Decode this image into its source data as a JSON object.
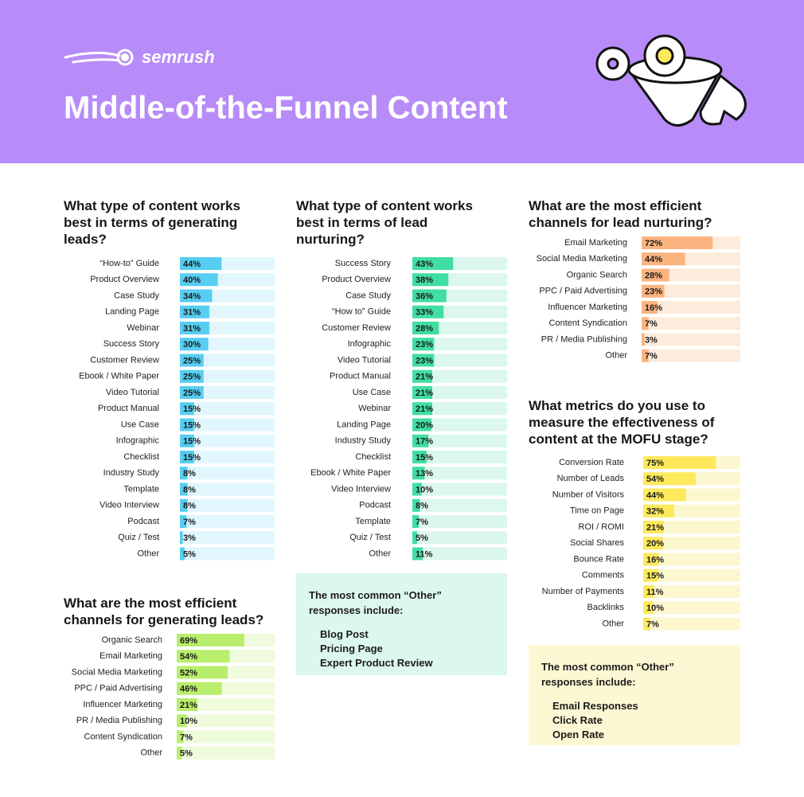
{
  "header": {
    "brand": "semrush",
    "title": "Middle-of-the-Funnel Content"
  },
  "chart_data": [
    {
      "type": "bar",
      "title": "What type of content works best in terms of generating leads?",
      "categories": [
        "“How-to” Guide",
        "Product Overview",
        "Case Study",
        "Landing Page",
        "Webinar",
        "Success Story",
        "Customer Review",
        "Ebook / White Paper",
        "Video Tutorial",
        "Product Manual",
        "Use Case",
        "Infographic",
        "Checklist",
        "Industry Study",
        "Template",
        "Video Interview",
        "Podcast",
        "Quiz / Test",
        "Other"
      ],
      "values": [
        44,
        40,
        34,
        31,
        31,
        30,
        25,
        25,
        25,
        15,
        15,
        15,
        15,
        8,
        8,
        8,
        7,
        3,
        5
      ],
      "value_labels": [
        "44%",
        "40%",
        "34%",
        "31%",
        "31%",
        "30%",
        "25%",
        "25%",
        "25%",
        "15%",
        "15%",
        "15%",
        "15%",
        "8%",
        "8%",
        "8%",
        "7%",
        "3%",
        "5%"
      ],
      "xlim": [
        0,
        100
      ],
      "color": "#56cdf1",
      "track_color": "#e2f6fd"
    },
    {
      "type": "bar",
      "title": "What type of content works best in terms of lead nurturing?",
      "categories": [
        "Success Story",
        "Product Overview",
        "Case Study",
        "“How to” Guide",
        "Customer Review",
        "Infographic",
        "Video Tutorial",
        "Product Manual",
        "Use Case",
        "Webinar",
        "Landing Page",
        "Industry Study",
        "Checklist",
        "Ebook / White Paper",
        "Video Interview",
        "Podcast",
        "Template",
        "Quiz / Test",
        "Other"
      ],
      "values": [
        43,
        38,
        36,
        33,
        28,
        23,
        23,
        21,
        21,
        21,
        20,
        17,
        15,
        13,
        10,
        8,
        7,
        5,
        11
      ],
      "value_labels": [
        "43%",
        "38%",
        "36%",
        "33%",
        "28%",
        "23%",
        "23%",
        "21%",
        "21%",
        "21%",
        "20%",
        "17%",
        "15%",
        "13%",
        "10%",
        "8%",
        "7%",
        "5%",
        "11%"
      ],
      "xlim": [
        0,
        100
      ],
      "color": "#3fdea1",
      "track_color": "#dcf7ed",
      "note": {
        "title": "The most common “Other” responses include:",
        "items": [
          "Blog Post",
          "Pricing Page",
          "Expert Product Review"
        ]
      }
    },
    {
      "type": "bar",
      "title": "What are the most efficient channels for lead nurturing?",
      "categories": [
        "Email Marketing",
        "Social Media Marketing",
        "Organic Search",
        "PPC / Paid Advertising",
        "Influencer Marketing",
        "Content Syndication",
        "PR / Media Publishing",
        "Other"
      ],
      "values": [
        72,
        44,
        28,
        23,
        16,
        7,
        3,
        7
      ],
      "value_labels": [
        "72%",
        "44%",
        "28%",
        "23%",
        "16%",
        "7%",
        "3%",
        "7%"
      ],
      "xlim": [
        0,
        100
      ],
      "color": "#fbb380",
      "track_color": "#fdebdc"
    },
    {
      "type": "bar",
      "title": "What are the most efficient channels for generating leads?",
      "categories": [
        "Organic Search",
        "Email Marketing",
        "Social Media Marketing",
        "PPC / Paid Advertising",
        "Influencer Marketing",
        "PR / Media Publishing",
        "Content Syndication",
        "Other"
      ],
      "values": [
        69,
        54,
        52,
        46,
        21,
        10,
        7,
        5
      ],
      "value_labels": [
        "69%",
        "54%",
        "52%",
        "46%",
        "21%",
        "10%",
        "7%",
        "5%"
      ],
      "xlim": [
        0,
        100
      ],
      "color": "#b8ee6b",
      "track_color": "#eefbdc"
    },
    {
      "type": "bar",
      "title": "What metrics do you use to measure the effectiveness of content at the MOFU stage?",
      "categories": [
        "Conversion Rate",
        "Number of Leads",
        "Number of Visitors",
        "Time on Page",
        "ROI / ROMI",
        "Social Shares",
        "Bounce Rate",
        "Comments",
        "Number of Payments",
        "Backlinks",
        "Other"
      ],
      "values": [
        75,
        54,
        44,
        32,
        21,
        20,
        16,
        15,
        11,
        10,
        7
      ],
      "value_labels": [
        "75%",
        "54%",
        "44%",
        "32%",
        "21%",
        "20%",
        "16%",
        "15%",
        "11%",
        "10%",
        "7%"
      ],
      "xlim": [
        0,
        100
      ],
      "color": "#fde95b",
      "track_color": "#fdf7cf",
      "note": {
        "title": "The most common “Other” responses include:",
        "items": [
          "Email Responses",
          "Click Rate",
          "Open Rate"
        ]
      }
    }
  ]
}
